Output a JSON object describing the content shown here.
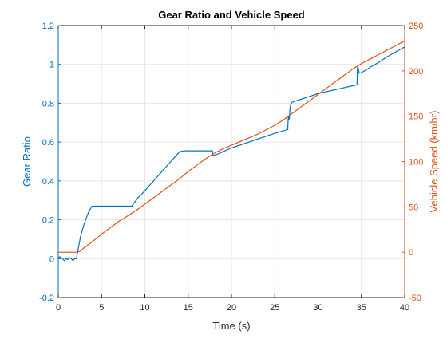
{
  "chart_data": {
    "type": "line",
    "title": "Gear Ratio and Vehicle Speed",
    "xlabel": "Time (s)",
    "ylabel_left": "Gear Ratio",
    "ylabel_right": "Vehicle Speed (km/hr)",
    "xlim": [
      0,
      40
    ],
    "ylim_left": [
      -0.2,
      1.2
    ],
    "ylim_right": [
      -50,
      250
    ],
    "x_ticks": [
      0,
      5,
      10,
      15,
      20,
      25,
      30,
      35,
      40
    ],
    "y_ticks_left": [
      -0.2,
      0,
      0.2,
      0.4,
      0.6,
      0.8,
      1,
      1.2
    ],
    "y_tick_labels_left": [
      "-0.2",
      "0",
      "0.2",
      "0.4",
      "0.6",
      "0.8",
      "1",
      "1.2"
    ],
    "y_ticks_right": [
      -50,
      0,
      50,
      100,
      150,
      200,
      250
    ],
    "grid": true,
    "colors": {
      "left": "#0072BD",
      "right": "#D95319",
      "axis": "#262626",
      "grid": "#e6e6e6"
    },
    "series": [
      {
        "axis": "left",
        "color": "#0072BD",
        "x": [
          0,
          0.15,
          0.3,
          0.5,
          0.7,
          0.9,
          1.1,
          1.3,
          1.5,
          1.7,
          1.9,
          2.1,
          2.3,
          2.6,
          3.0,
          3.5,
          3.9,
          4.5,
          5,
          6,
          7,
          8,
          8.5,
          8.7,
          9.0,
          9.2,
          9.6,
          10,
          11,
          12,
          13,
          14,
          14.5,
          15,
          16,
          17,
          17.8,
          17.85,
          18.5,
          19,
          20,
          21,
          22,
          23,
          24,
          25,
          26.5,
          26.55,
          26.6,
          26.65,
          26.7,
          26.75,
          26.85,
          27.0,
          27.3,
          28,
          29,
          30,
          31,
          32,
          33,
          34,
          34.5,
          34.55,
          34.6,
          34.65,
          34.75,
          34.9,
          35.5,
          36,
          37,
          38,
          39,
          40
        ],
        "values": [
          0.0,
          0.01,
          0.005,
          0.0,
          -0.01,
          0.0,
          -0.005,
          0.005,
          0.0,
          -0.01,
          0.0,
          0.0,
          0.05,
          0.12,
          0.18,
          0.24,
          0.27,
          0.27,
          0.27,
          0.27,
          0.27,
          0.27,
          0.27,
          0.285,
          0.3,
          0.315,
          0.33,
          0.35,
          0.4,
          0.45,
          0.5,
          0.55,
          0.555,
          0.555,
          0.555,
          0.555,
          0.555,
          0.53,
          0.54,
          0.55,
          0.57,
          0.585,
          0.6,
          0.615,
          0.63,
          0.645,
          0.665,
          0.72,
          0.735,
          0.715,
          0.73,
          0.77,
          0.795,
          0.805,
          0.81,
          0.82,
          0.835,
          0.85,
          0.86,
          0.87,
          0.88,
          0.89,
          0.895,
          0.985,
          0.94,
          0.98,
          0.955,
          0.955,
          0.97,
          0.985,
          1.01,
          1.04,
          1.065,
          1.09
        ]
      },
      {
        "axis": "right",
        "color": "#D95319",
        "x": [
          0,
          0.5,
          1,
          1.5,
          2,
          2.2,
          2.5,
          3,
          4,
          5,
          6,
          7,
          8,
          9,
          10,
          11,
          12,
          13,
          14,
          15,
          16,
          17,
          18,
          19,
          20,
          21,
          22,
          23,
          24,
          25,
          26,
          27,
          28,
          29,
          30,
          31,
          32,
          33,
          34,
          35,
          36,
          37,
          38,
          39,
          40
        ],
        "values": [
          0,
          0,
          0,
          0,
          0,
          0,
          1,
          5,
          12,
          20,
          27,
          34,
          40,
          46,
          53,
          60,
          67,
          74,
          81,
          89,
          96,
          103,
          109,
          114,
          118,
          122,
          126,
          130,
          135,
          140,
          146,
          153,
          160,
          167,
          174,
          181,
          188,
          195,
          202,
          208,
          213,
          218,
          223,
          228,
          233
        ]
      }
    ]
  }
}
